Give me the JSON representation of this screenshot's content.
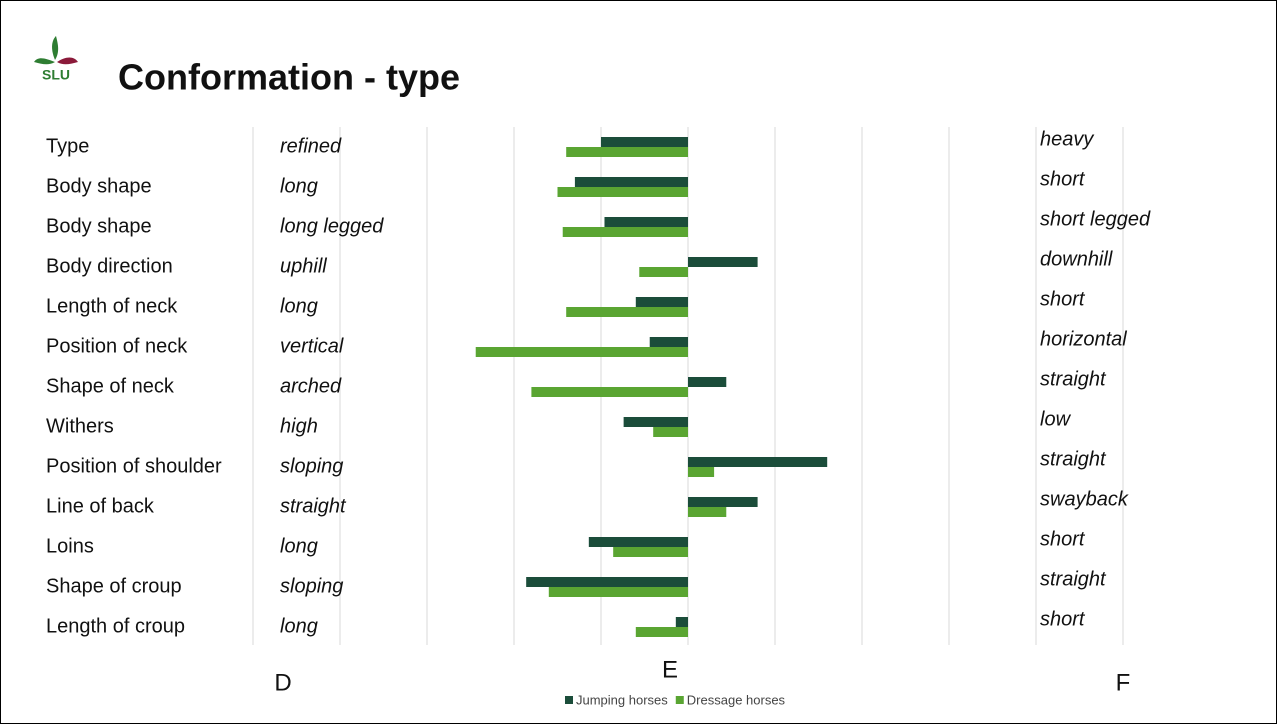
{
  "chart_data": {
    "type": "bar",
    "orientation": "horizontal",
    "title": "Conformation - type",
    "logo_text": "SLU",
    "categories": [
      "Type",
      "Body shape",
      "Body shape",
      "Body direction",
      "Length of neck",
      "Position of neck",
      "Shape of neck",
      "Withers",
      "Position of shoulder",
      "Line of back",
      "Loins",
      "Shape of croup",
      "Length of croup"
    ],
    "left_labels": [
      "refined",
      "long",
      "long legged",
      "uphill",
      "long",
      "vertical",
      "arched",
      "high",
      "sloping",
      "straight",
      "long",
      "sloping",
      "long"
    ],
    "right_labels": [
      "heavy",
      "short",
      "short legged",
      "downhill",
      "short",
      "horizontal",
      "straight",
      "low",
      "straight",
      "swayback",
      "short",
      "straight",
      "short"
    ],
    "series": [
      {
        "name": "Jumping horses",
        "color": "#1b4d3a",
        "values": [
          -0.5,
          -0.65,
          -0.48,
          0.4,
          -0.3,
          -0.22,
          0.22,
          -0.37,
          0.8,
          0.4,
          -0.57,
          -0.93,
          -0.07
        ]
      },
      {
        "name": "Dressage horses",
        "color": "#5aa532",
        "values": [
          -0.7,
          -0.75,
          -0.72,
          -0.28,
          -0.7,
          -1.22,
          -0.9,
          -0.2,
          0.15,
          0.22,
          -0.43,
          -0.8,
          -0.3
        ]
      }
    ],
    "xlim": [
      -2.5,
      2.5
    ],
    "xticks": [
      {
        "value": -2.5,
        "label": "D"
      },
      {
        "value": 0,
        "label": "E"
      },
      {
        "value": 2.5,
        "label": "F"
      }
    ],
    "xgrid": [
      -2.5,
      -2,
      -1.5,
      -1,
      -0.5,
      0,
      0.5,
      1,
      1.5,
      2,
      2.5
    ],
    "grid": true,
    "legend": "bottom"
  }
}
